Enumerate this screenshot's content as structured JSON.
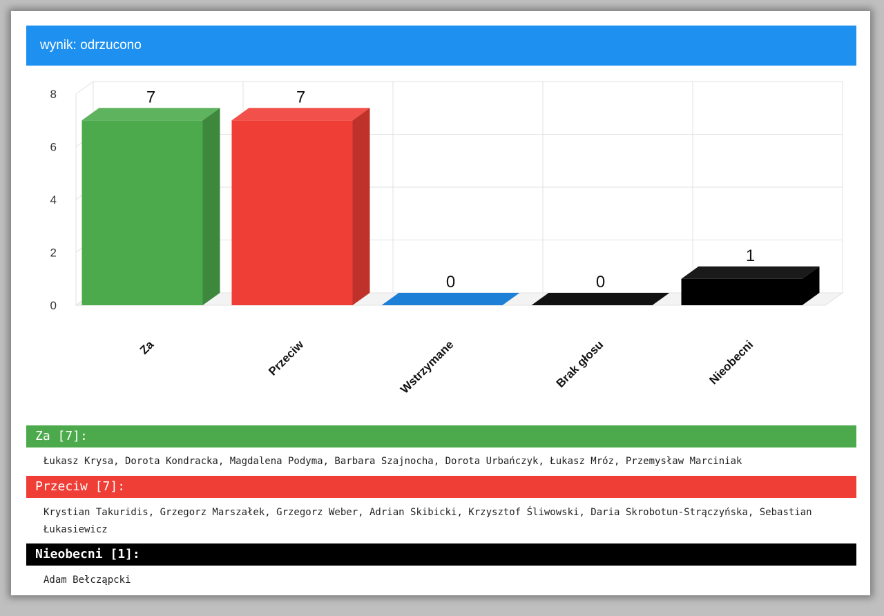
{
  "header": {
    "title": "wynik: odrzucono"
  },
  "colors": {
    "header": "#1e90ef",
    "za": "#4caa4c",
    "przeciw": "#ef3e36",
    "wstrzymane": "#1e7fd6",
    "brak": "#111111",
    "nieobecni": "#000000"
  },
  "chart_data": {
    "type": "bar",
    "categories": [
      "Za",
      "Przeciw",
      "Wstrzymane",
      "Brak głosu",
      "Nieobecni"
    ],
    "values": [
      7,
      7,
      0,
      0,
      1
    ],
    "data_labels": [
      "7",
      "7",
      "0",
      "0",
      "1"
    ],
    "colors": [
      "#4caa4c",
      "#ef3e36",
      "#1e7fd6",
      "#111111",
      "#000000"
    ],
    "ylim": [
      0,
      8
    ],
    "yticks": [
      "0",
      "2",
      "4",
      "6",
      "8"
    ],
    "grid": true,
    "three_d": true
  },
  "sections": [
    {
      "title": "Za [7]:",
      "color": "#4caa4c",
      "names": "Łukasz Krysa, Dorota Kondracka, Magdalena Podyma, Barbara Szajnocha, Dorota Urbańczyk, Łukasz Mróz, Przemysław Marciniak"
    },
    {
      "title": "Przeciw [7]:",
      "color": "#ef3e36",
      "names": "Krystian Takuridis, Grzegorz Marszałek, Grzegorz Weber, Adrian Skibicki, Krzysztof Śliwowski, Daria Skrobotun-Strączyńska, Sebastian Łukasiewicz"
    },
    {
      "title": "Nieobecni [1]:",
      "color": "#000000",
      "names": "Adam Bełcząpcki"
    }
  ]
}
